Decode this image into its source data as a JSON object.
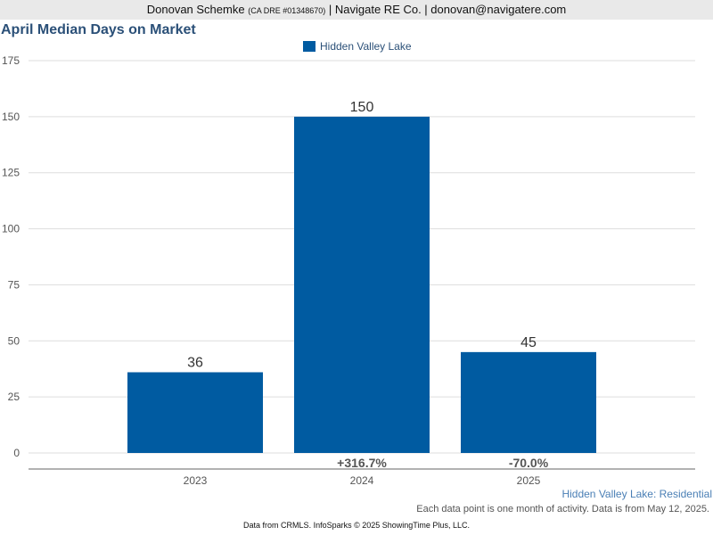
{
  "header": {
    "agent_name": "Donovan Schemke",
    "license": "(CA DRE #01348670)",
    "rest": "| Navigate RE Co. | donovan@navigatere.com"
  },
  "colors": {
    "bar": "#005ba1",
    "title": "#2b5078",
    "grid": "#dddddd"
  },
  "chart_data": {
    "type": "bar",
    "title": "April Median Days on Market",
    "categories": [
      "2023",
      "2024",
      "2025"
    ],
    "series": [
      {
        "name": "Hidden Valley Lake",
        "values": [
          36,
          150,
          45
        ]
      }
    ],
    "value_labels": [
      "36",
      "150",
      "45"
    ],
    "change_labels": [
      "",
      "+316.7%",
      "-70.0%"
    ],
    "ylim": [
      0,
      175
    ],
    "yticks": [
      0,
      25,
      50,
      75,
      100,
      125,
      150,
      175
    ],
    "grid": true,
    "legend": "top-center"
  },
  "footer": {
    "series_label": "Hidden Valley Lake: Residential",
    "activity_note": "Each data point is one month of activity. Data is from May 12, 2025.",
    "source_note": "Data from CRMLS. InfoSparks © 2025 ShowingTime Plus, LLC."
  }
}
